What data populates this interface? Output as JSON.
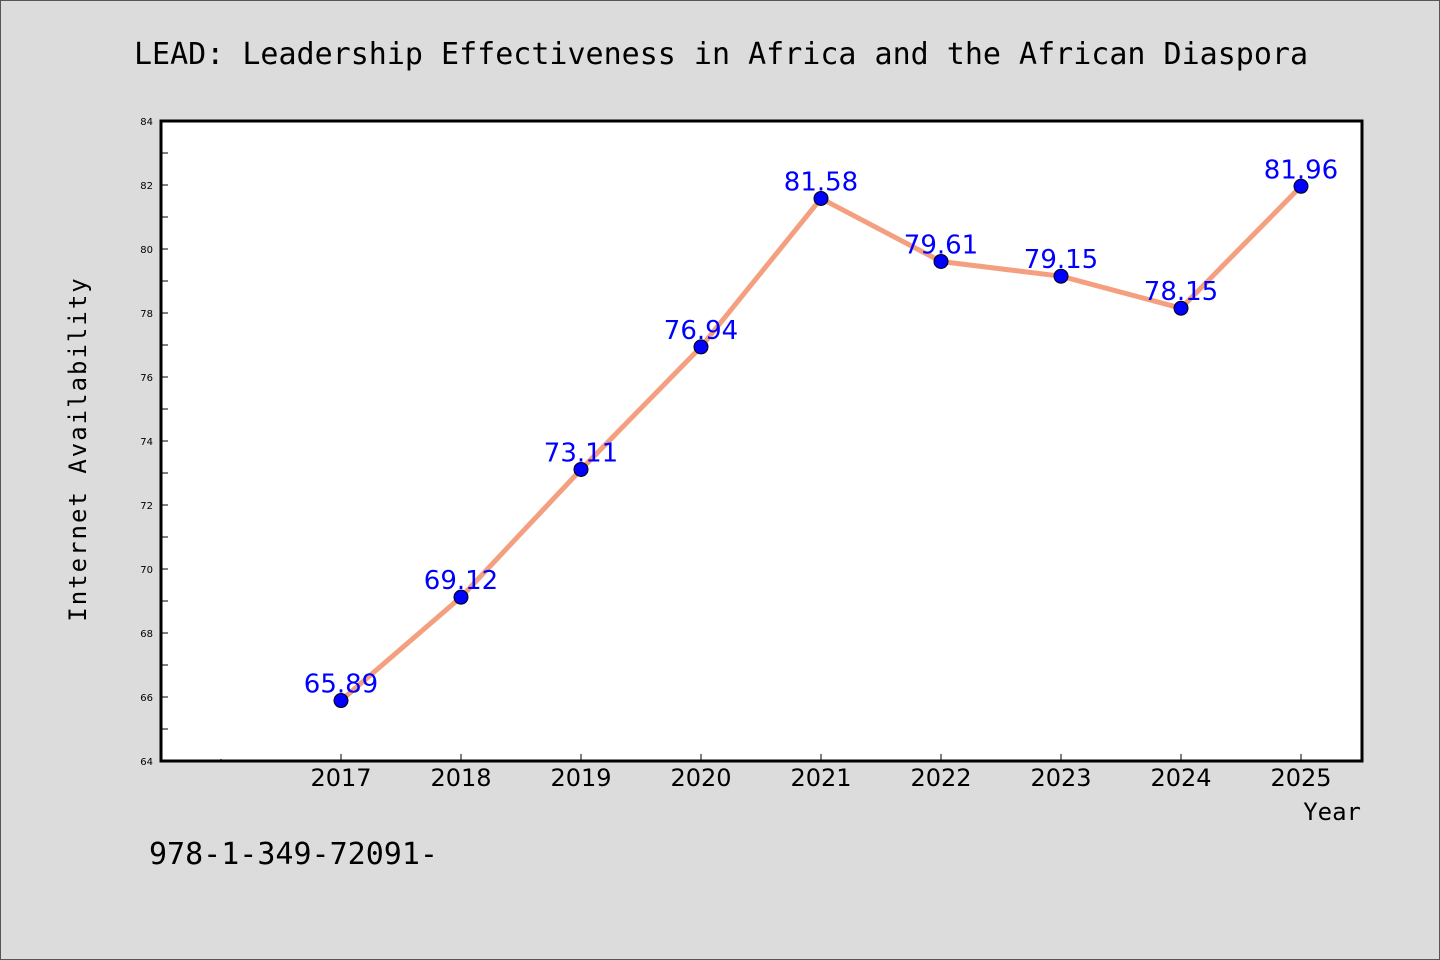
{
  "chart_data": {
    "type": "line",
    "title": "LEAD: Leadership Effectiveness in Africa and the African Diaspora",
    "xlabel": "Year",
    "ylabel": "Internet Availability",
    "categories": [
      "2017",
      "2018",
      "2019",
      "2020",
      "2021",
      "2022",
      "2023",
      "2024",
      "2025"
    ],
    "values": [
      65.89,
      69.12,
      73.11,
      76.94,
      81.58,
      79.61,
      79.15,
      78.15,
      81.96
    ],
    "data_labels": [
      "65.89",
      "69.12",
      "73.11",
      "76.94",
      "81.58",
      "79.61",
      "79.15",
      "78.15",
      "81.96"
    ],
    "ylim": [
      64,
      84
    ],
    "yticks": [
      "64",
      "66",
      "68",
      "70",
      "72",
      "74",
      "76",
      "78",
      "80",
      "82",
      "84"
    ],
    "grid": false,
    "line_color": "#f4a080",
    "marker_color": "#0000ff",
    "label_color": "#0000ff"
  },
  "footer": {
    "text": "978-1-349-72091-"
  }
}
